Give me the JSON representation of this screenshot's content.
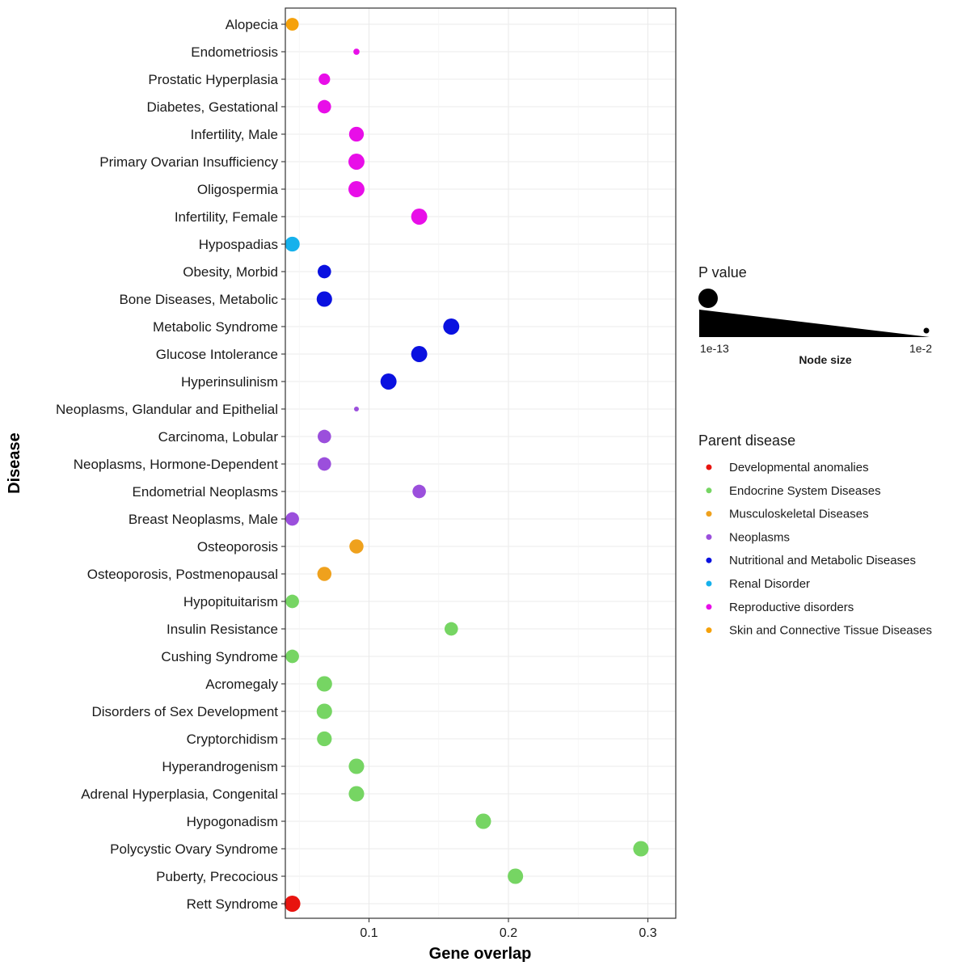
{
  "chart_data": {
    "type": "scatter",
    "xlabel": "Gene overlap",
    "ylabel": "Disease",
    "xlim": [
      0.04,
      0.32
    ],
    "x_ticks": [
      0.1,
      0.2,
      0.3
    ],
    "x_tick_labels": [
      "0.1",
      "0.2",
      "0.3"
    ],
    "grid": true,
    "legend_position": "right",
    "size_legend": {
      "title": "P value",
      "min_label": "1e-13",
      "max_label": "1e-2",
      "caption": "Node size"
    },
    "color_legend": {
      "title": "Parent disease",
      "entries": [
        {
          "label": "Developmental anomalies",
          "color": "#e8140f"
        },
        {
          "label": "Endocrine System Diseases",
          "color": "#76d563"
        },
        {
          "label": "Musculoskeletal Diseases",
          "color": "#efa11d"
        },
        {
          "label": "Neoplasms",
          "color": "#9b4fdc"
        },
        {
          "label": "Nutritional and Metabolic Diseases",
          "color": "#0a11e0"
        },
        {
          "label": "Renal Disorder",
          "color": "#16b1ec"
        },
        {
          "label": "Reproductive disorders",
          "color": "#e80ee8"
        },
        {
          "label": "Skin and Connective Tissue Diseases",
          "color": "#f5a10a"
        }
      ]
    },
    "points": [
      {
        "disease": "Alopecia",
        "x": 0.045,
        "log10p": -8,
        "group": "Skin and Connective Tissue Diseases"
      },
      {
        "disease": "Endometriosis",
        "x": 0.091,
        "log10p": -3,
        "group": "Reproductive disorders"
      },
      {
        "disease": "Prostatic Hyperplasia",
        "x": 0.068,
        "log10p": -7,
        "group": "Reproductive disorders"
      },
      {
        "disease": "Diabetes, Gestational",
        "x": 0.068,
        "log10p": -8.5,
        "group": "Reproductive disorders"
      },
      {
        "disease": "Infertility, Male",
        "x": 0.091,
        "log10p": -9.5,
        "group": "Reproductive disorders"
      },
      {
        "disease": "Primary Ovarian Insufficiency",
        "x": 0.091,
        "log10p": -10.5,
        "group": "Reproductive disorders"
      },
      {
        "disease": "Oligospermia",
        "x": 0.091,
        "log10p": -10.5,
        "group": "Reproductive disorders"
      },
      {
        "disease": "Infertility, Female",
        "x": 0.136,
        "log10p": -10.5,
        "group": "Reproductive disorders"
      },
      {
        "disease": "Hypospadias",
        "x": 0.045,
        "log10p": -9.5,
        "group": "Renal Disorder"
      },
      {
        "disease": "Obesity, Morbid",
        "x": 0.068,
        "log10p": -8.5,
        "group": "Nutritional and Metabolic Diseases"
      },
      {
        "disease": "Bone Diseases, Metabolic",
        "x": 0.068,
        "log10p": -10,
        "group": "Nutritional and Metabolic Diseases"
      },
      {
        "disease": "Metabolic Syndrome",
        "x": 0.159,
        "log10p": -10.5,
        "group": "Nutritional and Metabolic Diseases"
      },
      {
        "disease": "Glucose Intolerance",
        "x": 0.136,
        "log10p": -10.5,
        "group": "Nutritional and Metabolic Diseases"
      },
      {
        "disease": "Hyperinsulinism",
        "x": 0.114,
        "log10p": -10.5,
        "group": "Nutritional and Metabolic Diseases"
      },
      {
        "disease": "Neoplasms, Glandular and Epithelial",
        "x": 0.091,
        "log10p": -2,
        "group": "Neoplasms"
      },
      {
        "disease": "Carcinoma, Lobular",
        "x": 0.068,
        "log10p": -8.5,
        "group": "Neoplasms"
      },
      {
        "disease": "Neoplasms, Hormone-Dependent",
        "x": 0.068,
        "log10p": -8.5,
        "group": "Neoplasms"
      },
      {
        "disease": "Endometrial Neoplasms",
        "x": 0.136,
        "log10p": -8.5,
        "group": "Neoplasms"
      },
      {
        "disease": "Breast Neoplasms, Male",
        "x": 0.045,
        "log10p": -8.5,
        "group": "Neoplasms"
      },
      {
        "disease": "Osteoporosis",
        "x": 0.091,
        "log10p": -9,
        "group": "Musculoskeletal Diseases"
      },
      {
        "disease": "Osteoporosis, Postmenopausal",
        "x": 0.068,
        "log10p": -9,
        "group": "Musculoskeletal Diseases"
      },
      {
        "disease": "Hypopituitarism",
        "x": 0.045,
        "log10p": -8.5,
        "group": "Endocrine System Diseases"
      },
      {
        "disease": "Insulin Resistance",
        "x": 0.159,
        "log10p": -8.5,
        "group": "Endocrine System Diseases"
      },
      {
        "disease": "Cushing Syndrome",
        "x": 0.045,
        "log10p": -8.5,
        "group": "Endocrine System Diseases"
      },
      {
        "disease": "Acromegaly",
        "x": 0.068,
        "log10p": -10,
        "group": "Endocrine System Diseases"
      },
      {
        "disease": "Disorders of Sex Development",
        "x": 0.068,
        "log10p": -10,
        "group": "Endocrine System Diseases"
      },
      {
        "disease": "Cryptorchidism",
        "x": 0.068,
        "log10p": -9.5,
        "group": "Endocrine System Diseases"
      },
      {
        "disease": "Hyperandrogenism",
        "x": 0.091,
        "log10p": -10,
        "group": "Endocrine System Diseases"
      },
      {
        "disease": "Adrenal Hyperplasia, Congenital",
        "x": 0.091,
        "log10p": -10,
        "group": "Endocrine System Diseases"
      },
      {
        "disease": "Hypogonadism",
        "x": 0.182,
        "log10p": -10,
        "group": "Endocrine System Diseases"
      },
      {
        "disease": "Polycystic Ovary Syndrome",
        "x": 0.295,
        "log10p": -10,
        "group": "Endocrine System Diseases"
      },
      {
        "disease": "Puberty, Precocious",
        "x": 0.205,
        "log10p": -10,
        "group": "Endocrine System Diseases"
      },
      {
        "disease": "Rett Syndrome",
        "x": 0.045,
        "log10p": -10.5,
        "group": "Developmental anomalies"
      }
    ]
  }
}
